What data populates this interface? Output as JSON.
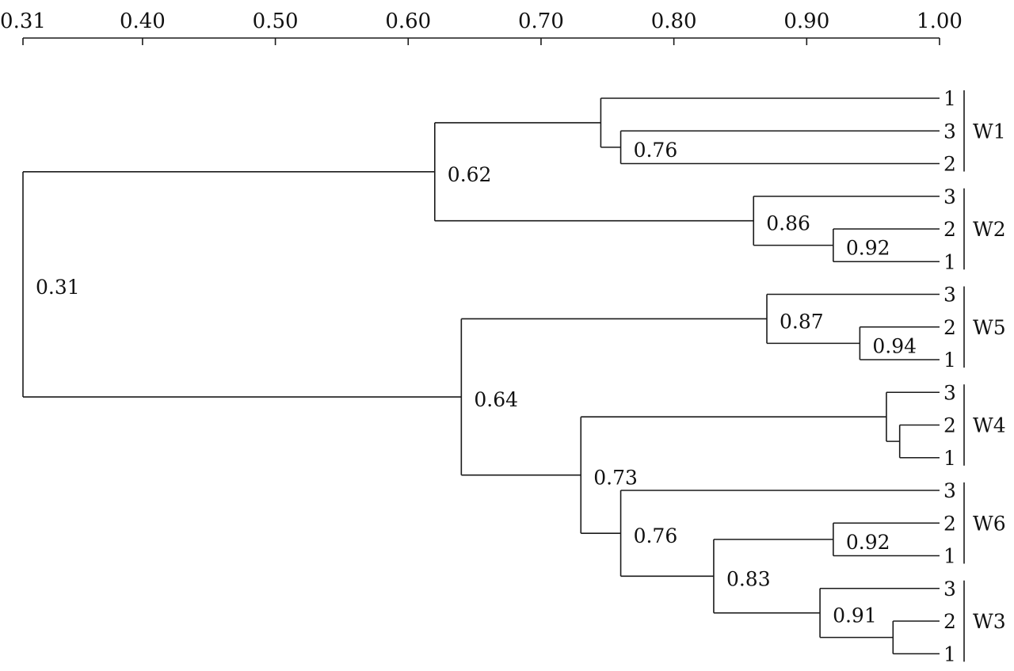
{
  "axis": {
    "ticks": [
      0.31,
      0.4,
      0.5,
      0.6,
      0.7,
      0.8,
      0.9,
      1.0
    ],
    "tick_labels": [
      "0.31",
      "0.40",
      "0.50",
      "0.60",
      "0.70",
      "0.80",
      "0.90",
      "1.00"
    ]
  },
  "leaves": [
    {
      "label": "1",
      "group": "W1"
    },
    {
      "label": "3",
      "group": "W1"
    },
    {
      "label": "2",
      "group": "W1"
    },
    {
      "label": "3",
      "group": "W2"
    },
    {
      "label": "2",
      "group": "W2"
    },
    {
      "label": "1",
      "group": "W2"
    },
    {
      "label": "3",
      "group": "W5"
    },
    {
      "label": "2",
      "group": "W5"
    },
    {
      "label": "1",
      "group": "W5"
    },
    {
      "label": "3",
      "group": "W4"
    },
    {
      "label": "2",
      "group": "W4"
    },
    {
      "label": "1",
      "group": "W4"
    },
    {
      "label": "3",
      "group": "W6"
    },
    {
      "label": "2",
      "group": "W6"
    },
    {
      "label": "1",
      "group": "W6"
    },
    {
      "label": "3",
      "group": "W3"
    },
    {
      "label": "2",
      "group": "W3"
    },
    {
      "label": "1",
      "group": "W3"
    }
  ],
  "groups": [
    {
      "label": "W1",
      "first": 0,
      "last": 2
    },
    {
      "label": "W2",
      "first": 3,
      "last": 5
    },
    {
      "label": "W5",
      "first": 6,
      "last": 8
    },
    {
      "label": "W4",
      "first": 9,
      "last": 11
    },
    {
      "label": "W6",
      "first": 12,
      "last": 14
    },
    {
      "label": "W3",
      "first": 15,
      "last": 17
    }
  ],
  "tree": {
    "sim": 0.31,
    "label": "0.31",
    "children": [
      {
        "sim": 0.62,
        "label": "0.62",
        "children": [
          {
            "sim": 0.745,
            "label": "",
            "children": [
              {
                "leaf": 0
              },
              {
                "sim": 0.76,
                "label": "0.76",
                "children": [
                  {
                    "leaf": 1
                  },
                  {
                    "leaf": 2
                  }
                ]
              }
            ]
          },
          {
            "sim": 0.86,
            "label": "0.86",
            "children": [
              {
                "leaf": 3
              },
              {
                "sim": 0.92,
                "label": "0.92",
                "children": [
                  {
                    "leaf": 4
                  },
                  {
                    "leaf": 5
                  }
                ]
              }
            ]
          }
        ]
      },
      {
        "sim": 0.64,
        "label": "0.64",
        "children": [
          {
            "sim": 0.87,
            "label": "0.87",
            "children": [
              {
                "leaf": 6
              },
              {
                "sim": 0.94,
                "label": "0.94",
                "children": [
                  {
                    "leaf": 7
                  },
                  {
                    "leaf": 8
                  }
                ]
              }
            ]
          },
          {
            "sim": 0.73,
            "label": "0.73",
            "children": [
              {
                "sim": 0.96,
                "label": "",
                "children": [
                  {
                    "leaf": 9
                  },
                  {
                    "sim": 0.97,
                    "label": "",
                    "children": [
                      {
                        "leaf": 10
                      },
                      {
                        "leaf": 11
                      }
                    ]
                  }
                ]
              },
              {
                "sim": 0.76,
                "label": "0.76",
                "children": [
                  {
                    "leaf": 12
                  },
                  {
                    "sim": 0.83,
                    "label": "0.83",
                    "children": [
                      {
                        "sim": 0.92,
                        "label": "0.92",
                        "children": [
                          {
                            "leaf": 13
                          },
                          {
                            "leaf": 14
                          }
                        ]
                      },
                      {
                        "sim": 0.91,
                        "label": "0.91",
                        "children": [
                          {
                            "leaf": 15
                          },
                          {
                            "sim": 0.965,
                            "label": "",
                            "children": [
                              {
                                "leaf": 16
                              },
                              {
                                "leaf": 17
                              }
                            ]
                          }
                        ]
                      }
                    ]
                  }
                ]
              }
            ]
          }
        ]
      }
    ]
  }
}
